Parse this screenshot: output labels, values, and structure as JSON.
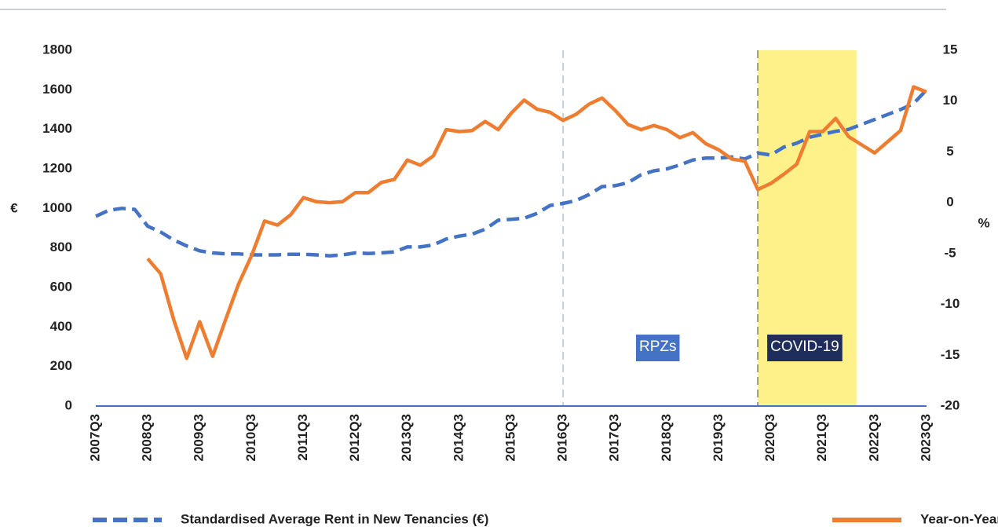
{
  "chart_data": {
    "type": "line",
    "y_label": "€",
    "y2_label": "%",
    "categories": [
      "2007Q3",
      null,
      null,
      null,
      "2008Q3",
      null,
      null,
      null,
      "2009Q3",
      null,
      null,
      null,
      "2010Q3",
      null,
      null,
      null,
      "2011Q3",
      null,
      null,
      null,
      "2012Q3",
      null,
      null,
      null,
      "2013Q3",
      null,
      null,
      null,
      "2014Q3",
      null,
      null,
      null,
      "2015Q3",
      null,
      null,
      null,
      "2016Q3",
      null,
      null,
      null,
      "2017Q3",
      null,
      null,
      null,
      "2018Q3",
      null,
      null,
      null,
      "2019Q3",
      null,
      null,
      null,
      "2020Q3",
      null,
      null,
      null,
      "2021Q3",
      null,
      null,
      null,
      "2022Q3",
      null,
      null,
      null,
      "2023Q3"
    ],
    "series": [
      {
        "name": "Standardised Average Rent in New Tenancies (€)",
        "color": "#4472c4",
        "dashed": true,
        "axis": "y",
        "values": [
          960,
          990,
          1000,
          995,
          910,
          880,
          840,
          810,
          785,
          775,
          770,
          770,
          765,
          765,
          765,
          768,
          768,
          765,
          760,
          765,
          775,
          772,
          775,
          780,
          805,
          805,
          815,
          845,
          860,
          870,
          895,
          940,
          945,
          950,
          975,
          1015,
          1025,
          1040,
          1070,
          1110,
          1115,
          1130,
          1170,
          1190,
          1200,
          1220,
          1245,
          1255,
          1255,
          1260,
          1250,
          1280,
          1270,
          1310,
          1330,
          1360,
          1375,
          1390,
          1400,
          1425,
          1450,
          1475,
          1500,
          1530,
          1600
        ]
      },
      {
        "name": "Year-on-Year % Change",
        "color": "#ed7d31",
        "dashed": false,
        "axis": "y2",
        "values": [
          null,
          null,
          null,
          null,
          -5.5,
          -7,
          -11.5,
          -15.3,
          -11.7,
          -15.1,
          -11.5,
          -8,
          -5.2,
          -1.8,
          -2.2,
          -1.2,
          0.5,
          0.1,
          0,
          0.1,
          1,
          1,
          2,
          2.3,
          4.2,
          3.7,
          4.6,
          7.2,
          7,
          7.1,
          8,
          7.2,
          8.8,
          10.1,
          9.2,
          8.9,
          8.1,
          8.7,
          9.7,
          10.3,
          9.1,
          7.7,
          7.2,
          7.6,
          7.2,
          6.4,
          6.9,
          5.8,
          5.2,
          4.3,
          4.1,
          1.3,
          1.9,
          2.8,
          3.8,
          7,
          7,
          8.3,
          6.5,
          5.7,
          4.9,
          6,
          7.1,
          11.4,
          10.9
        ]
      }
    ],
    "ylim": [
      0,
      1800
    ],
    "yticks": [
      0,
      200,
      400,
      600,
      800,
      1000,
      1200,
      1400,
      1600,
      1800
    ],
    "y2lim": [
      -20,
      15
    ],
    "y2ticks": [
      -20,
      -15,
      -10,
      -5,
      0,
      5,
      10,
      15
    ],
    "annotations": [
      {
        "label": "RPZs",
        "x": 36,
        "color": "#4472c4"
      },
      {
        "label": "COVID-19",
        "x": 51,
        "x_end": 58.6,
        "color": "#1f2d5c",
        "band_color": "#fff18a"
      }
    ]
  }
}
